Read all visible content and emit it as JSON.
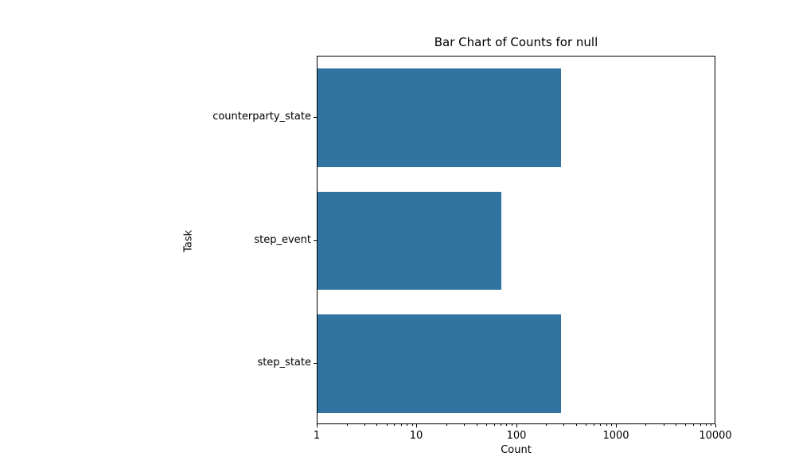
{
  "chart_data": {
    "type": "bar",
    "orientation": "horizontal",
    "title": "Bar Chart of Counts for null",
    "xlabel": "Count",
    "ylabel": "Task",
    "categories": [
      "counterparty_state",
      "step_event",
      "step_state"
    ],
    "values": [
      278,
      70,
      278
    ],
    "xscale": "log",
    "xlim": [
      1,
      10000
    ],
    "x_ticks": [
      1,
      10,
      100,
      1000,
      10000
    ],
    "x_tick_labels": [
      "1",
      "10",
      "100",
      "1000",
      "10000"
    ],
    "bar_color": "#3274A1",
    "axis_color": "#000000",
    "background_color": "#ffffff",
    "grid": false,
    "legend": null
  }
}
